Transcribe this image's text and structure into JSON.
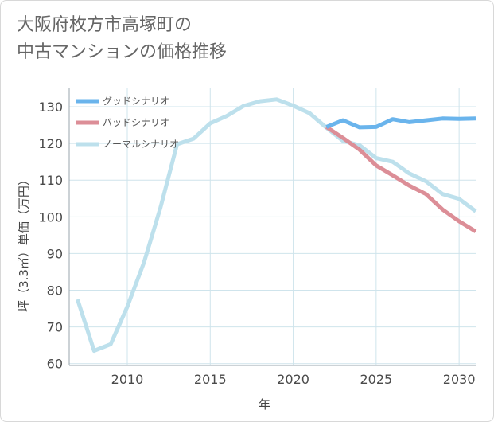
{
  "title_lines": [
    "大阪府枚方市高塚町の",
    "中古マンションの価格推移"
  ],
  "chart_data": {
    "type": "line",
    "title": "大阪府枚方市高塚町の中古マンションの価格推移",
    "xlabel": "年",
    "ylabel": "坪（3.3㎡）単価（万円）",
    "xlim": [
      2006.5,
      2031
    ],
    "ylim": [
      59.5,
      135
    ],
    "xticks": [
      2010,
      2015,
      2020,
      2025,
      2030
    ],
    "yticks": [
      60,
      70,
      80,
      90,
      100,
      110,
      120,
      130
    ],
    "grid": true,
    "legend_position": "top-left",
    "series": [
      {
        "name": "グッドシナリオ",
        "color": "#6ab4ec",
        "x": [
          2022,
          2023,
          2024,
          2025,
          2026,
          2027,
          2028,
          2029,
          2030,
          2031
        ],
        "y": [
          124.5,
          126.3,
          124.4,
          124.5,
          126.6,
          125.8,
          126.3,
          126.8,
          126.7,
          126.8
        ]
      },
      {
        "name": "バッドシナリオ",
        "color": "#dc8e97",
        "x": [
          2022,
          2023,
          2024,
          2025,
          2026,
          2027,
          2028,
          2029,
          2030,
          2031
        ],
        "y": [
          124.5,
          121.5,
          118.3,
          114.0,
          111.3,
          108.5,
          106.2,
          102.0,
          98.8,
          96.0
        ]
      },
      {
        "name": "ノーマルシナリオ",
        "color": "#bde0ec",
        "x": [
          2007,
          2008,
          2009,
          2010,
          2011,
          2012,
          2013,
          2014,
          2015,
          2016,
          2017,
          2018,
          2019,
          2020,
          2021,
          2022,
          2023,
          2024,
          2025,
          2026,
          2027,
          2028,
          2029,
          2030,
          2031
        ],
        "y": [
          77.5,
          63.5,
          65.3,
          75.5,
          87.5,
          102.5,
          119.8,
          121.3,
          125.5,
          127.5,
          130.2,
          131.5,
          132.0,
          130.3,
          128.2,
          124.3,
          120.7,
          119.5,
          116.0,
          115.0,
          111.8,
          109.7,
          106.2,
          104.9,
          101.5
        ]
      }
    ]
  }
}
